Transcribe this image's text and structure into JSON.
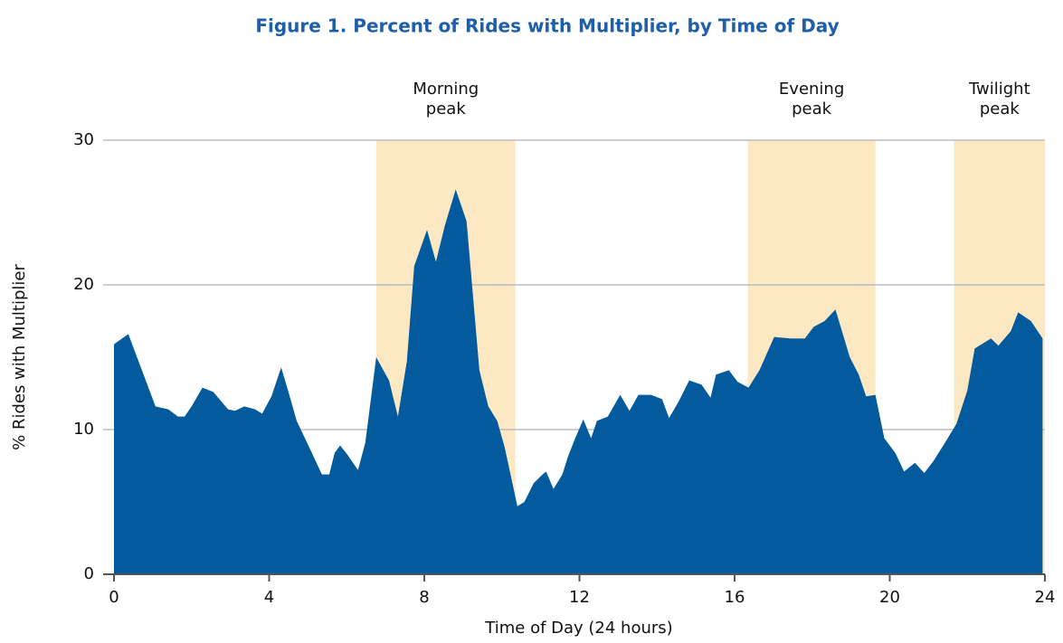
{
  "chart_data": {
    "type": "area",
    "title": "Figure 1. Percent of Rides with Multiplier, by Time of Day",
    "x_label": "Time of Day (24 hours)",
    "y_label": "% Rides with Multiplier",
    "color": "#035b9e",
    "band_color": "#fde8c4",
    "grid": true,
    "xlim": [
      0,
      24
    ],
    "xticks": [
      0,
      4,
      8,
      12,
      16,
      20,
      24
    ],
    "ylim": [
      0,
      30
    ],
    "yticks": [
      0,
      10,
      20,
      30
    ],
    "bands": [
      {
        "label": "Morning peak",
        "start": 6.76,
        "end": 10.35
      },
      {
        "label": "Evening peak",
        "start": 16.34,
        "end": 19.63
      },
      {
        "label": "Twilight peak",
        "start": 21.66,
        "end": 24
      }
    ],
    "x": [
      0,
      0.37,
      1.07,
      1.4,
      1.65,
      1.82,
      2.0,
      2.28,
      2.56,
      2.94,
      3.12,
      3.36,
      3.64,
      3.82,
      4.06,
      4.31,
      4.52,
      4.71,
      5.03,
      5.36,
      5.55,
      5.69,
      5.83,
      6.01,
      6.29,
      6.48,
      6.76,
      7.09,
      7.32,
      7.55,
      7.74,
      8.07,
      8.3,
      8.53,
      8.81,
      9.09,
      9.42,
      9.65,
      9.88,
      10.07,
      10.4,
      10.58,
      10.82,
      11.05,
      11.14,
      11.33,
      11.56,
      11.7,
      11.89,
      12.1,
      12.3,
      12.45,
      12.73,
      13.05,
      13.29,
      13.52,
      13.85,
      14.13,
      14.31,
      14.55,
      14.83,
      15.15,
      15.38,
      15.52,
      15.85,
      16.08,
      16.36,
      16.64,
      17.02,
      17.44,
      17.81,
      18.04,
      18.32,
      18.6,
      18.97,
      19.2,
      19.39,
      19.63,
      19.86,
      20.14,
      20.37,
      20.65,
      20.89,
      21.12,
      21.45,
      21.72,
      22.0,
      22.19,
      22.61,
      22.8,
      23.12,
      23.31,
      23.64,
      23.94
    ],
    "values": [
      15.9,
      16.6,
      11.6,
      11.4,
      10.9,
      10.9,
      11.6,
      12.9,
      12.6,
      11.4,
      11.3,
      11.6,
      11.4,
      11.1,
      12.3,
      14.3,
      12.4,
      10.6,
      8.8,
      6.9,
      6.9,
      8.4,
      8.9,
      8.3,
      7.2,
      9.1,
      15.0,
      13.4,
      10.9,
      14.7,
      21.3,
      23.8,
      21.6,
      24.1,
      26.6,
      24.4,
      14.1,
      11.6,
      10.6,
      8.8,
      4.7,
      5.0,
      6.3,
      6.9,
      7.1,
      5.9,
      6.9,
      8.1,
      9.4,
      10.7,
      9.4,
      10.6,
      10.9,
      12.4,
      11.3,
      12.4,
      12.4,
      12.1,
      10.8,
      11.9,
      13.4,
      13.1,
      12.2,
      13.8,
      14.1,
      13.3,
      12.9,
      14.1,
      16.4,
      16.3,
      16.3,
      17.1,
      17.5,
      18.3,
      15.0,
      13.8,
      12.3,
      12.4,
      9.4,
      8.4,
      7.1,
      7.7,
      7.0,
      7.8,
      9.2,
      10.4,
      12.7,
      15.6,
      16.3,
      15.8,
      16.8,
      18.1,
      17.5,
      16.3
    ]
  }
}
